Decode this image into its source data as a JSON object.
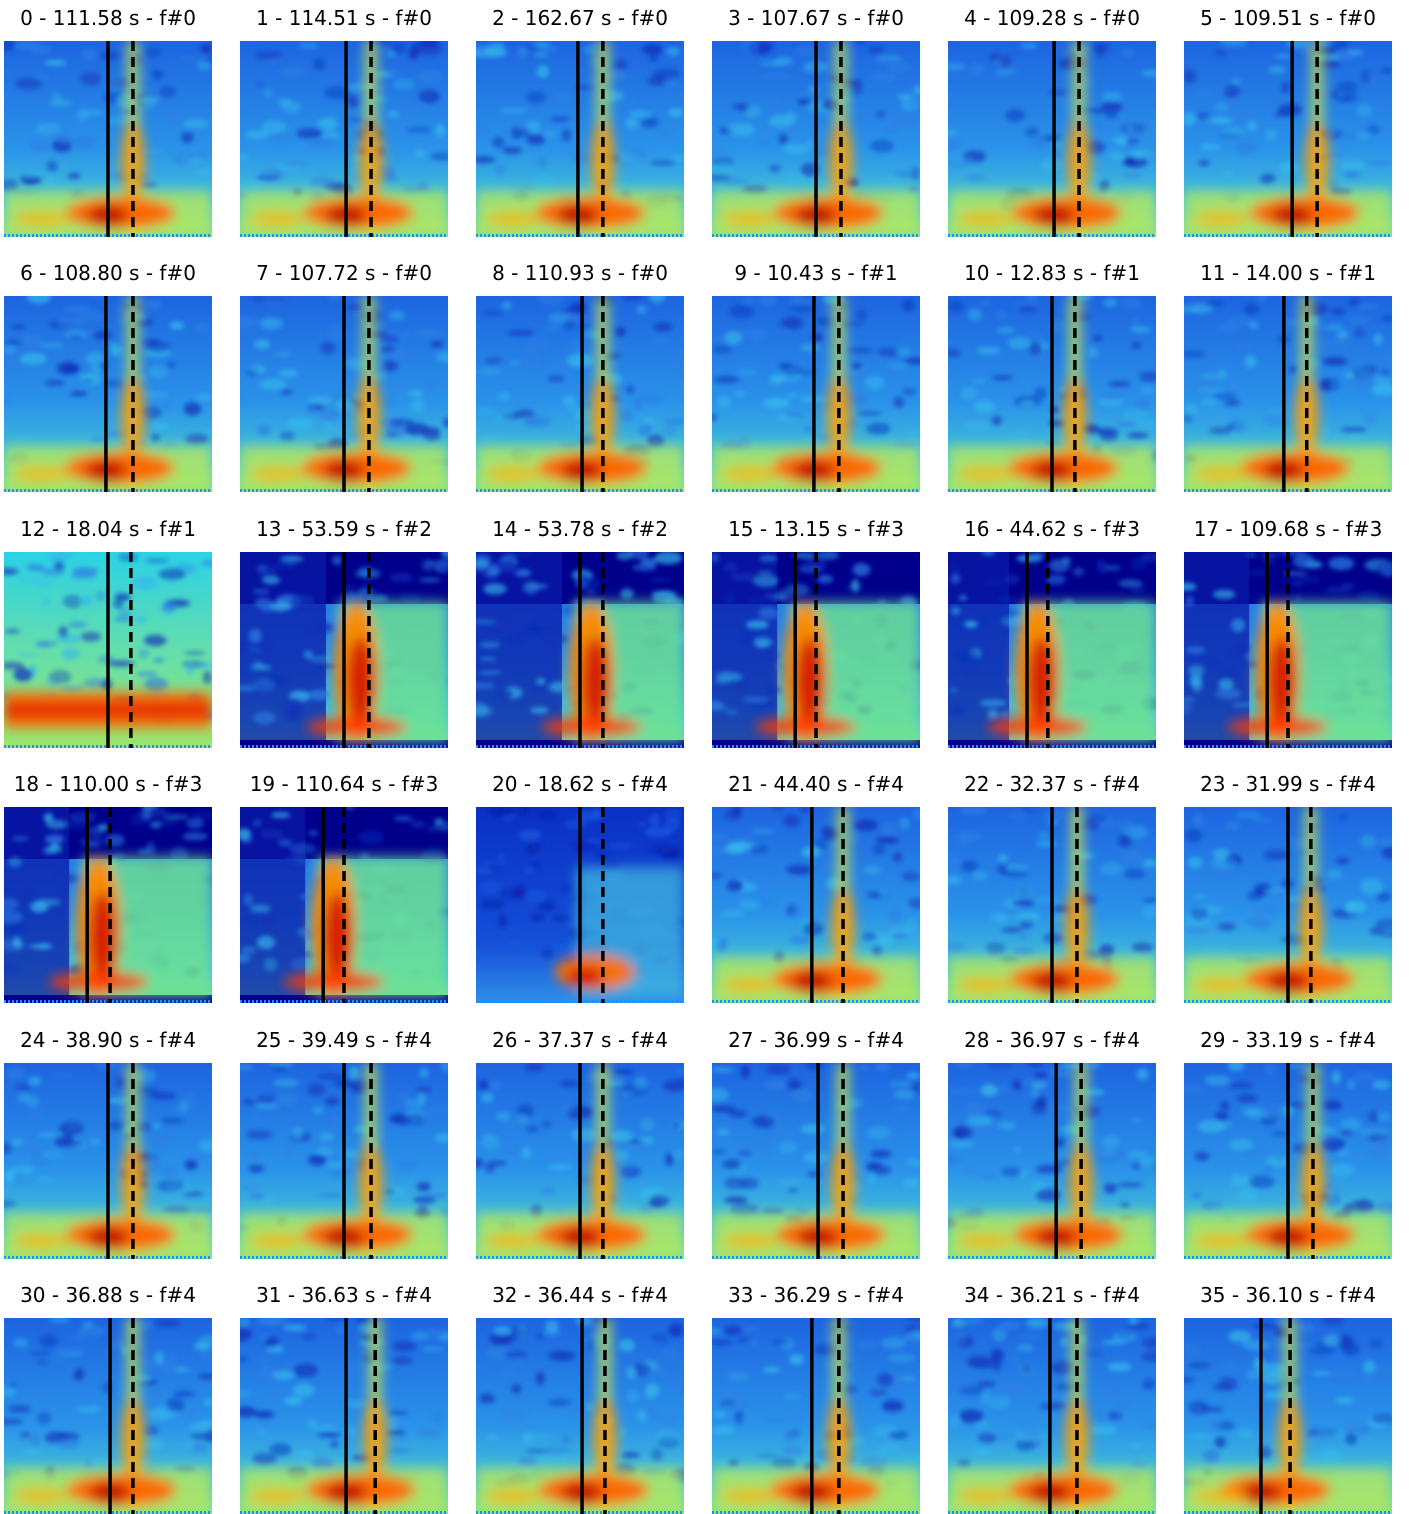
{
  "panels": [
    {
      "title": "0 - 111.58 s - f#0",
      "solid": 0.5,
      "dashed": 0.62,
      "style": "A",
      "seed": 1
    },
    {
      "title": "1 - 114.51 s - f#0",
      "solid": 0.51,
      "dashed": 0.63,
      "style": "A",
      "seed": 2
    },
    {
      "title": "2 - 162.67 s - f#0",
      "solid": 0.49,
      "dashed": 0.61,
      "style": "A",
      "seed": 3
    },
    {
      "title": "3 - 107.67 s - f#0",
      "solid": 0.5,
      "dashed": 0.62,
      "style": "A",
      "seed": 4
    },
    {
      "title": "4 - 109.28 s - f#0",
      "solid": 0.51,
      "dashed": 0.63,
      "style": "A",
      "seed": 5
    },
    {
      "title": "5 - 109.51 s - f#0",
      "solid": 0.52,
      "dashed": 0.64,
      "style": "A",
      "seed": 6
    },
    {
      "title": "6 - 108.80 s - f#0",
      "solid": 0.49,
      "dashed": 0.62,
      "style": "A",
      "seed": 7
    },
    {
      "title": "7 - 107.72 s - f#0",
      "solid": 0.5,
      "dashed": 0.62,
      "style": "A",
      "seed": 8
    },
    {
      "title": "8 - 110.93 s - f#0",
      "solid": 0.51,
      "dashed": 0.61,
      "style": "A",
      "seed": 9
    },
    {
      "title": "9 - 10.43 s - f#1",
      "solid": 0.49,
      "dashed": 0.61,
      "style": "A",
      "seed": 10
    },
    {
      "title": "10 - 12.83 s - f#1",
      "solid": 0.5,
      "dashed": 0.61,
      "style": "A",
      "seed": 11
    },
    {
      "title": "11 - 14.00 s - f#1",
      "solid": 0.48,
      "dashed": 0.59,
      "style": "A",
      "seed": 12
    },
    {
      "title": "12 - 18.04 s - f#1",
      "solid": 0.5,
      "dashed": 0.61,
      "style": "C",
      "seed": 13
    },
    {
      "title": "13 - 53.59 s - f#2",
      "solid": 0.5,
      "dashed": 0.62,
      "style": "B",
      "seed": 14
    },
    {
      "title": "14 - 53.78 s - f#2",
      "solid": 0.5,
      "dashed": 0.61,
      "style": "B",
      "seed": 15
    },
    {
      "title": "15 - 13.15 s - f#3",
      "solid": 0.4,
      "dashed": 0.5,
      "style": "B",
      "seed": 16
    },
    {
      "title": "16 - 44.62 s - f#3",
      "solid": 0.38,
      "dashed": 0.48,
      "style": "B",
      "seed": 17
    },
    {
      "title": "17 - 109.68 s - f#3",
      "solid": 0.4,
      "dashed": 0.5,
      "style": "B",
      "seed": 18
    },
    {
      "title": "18 - 110.00 s - f#3",
      "solid": 0.4,
      "dashed": 0.51,
      "style": "B",
      "seed": 19
    },
    {
      "title": "19 - 110.64 s - f#3",
      "solid": 0.4,
      "dashed": 0.5,
      "style": "B",
      "seed": 20
    },
    {
      "title": "20 - 18.62 s - f#4",
      "solid": 0.5,
      "dashed": 0.61,
      "style": "D",
      "seed": 21
    },
    {
      "title": "21 - 44.40 s - f#4",
      "solid": 0.48,
      "dashed": 0.63,
      "style": "A",
      "seed": 22
    },
    {
      "title": "22 - 32.37 s - f#4",
      "solid": 0.5,
      "dashed": 0.62,
      "style": "A",
      "seed": 23
    },
    {
      "title": "23 - 31.99 s - f#4",
      "solid": 0.5,
      "dashed": 0.61,
      "style": "A",
      "seed": 24
    },
    {
      "title": "24 - 38.90 s - f#4",
      "solid": 0.5,
      "dashed": 0.62,
      "style": "A",
      "seed": 25
    },
    {
      "title": "25 - 39.49 s - f#4",
      "solid": 0.5,
      "dashed": 0.63,
      "style": "A",
      "seed": 26
    },
    {
      "title": "26 - 37.37 s - f#4",
      "solid": 0.5,
      "dashed": 0.61,
      "style": "A",
      "seed": 27
    },
    {
      "title": "27 - 36.99 s - f#4",
      "solid": 0.51,
      "dashed": 0.63,
      "style": "A",
      "seed": 28
    },
    {
      "title": "28 - 36.97 s - f#4",
      "solid": 0.52,
      "dashed": 0.64,
      "style": "A",
      "seed": 29
    },
    {
      "title": "29 - 33.19 s - f#4",
      "solid": 0.5,
      "dashed": 0.62,
      "style": "A",
      "seed": 30
    },
    {
      "title": "30 - 36.88 s - f#4",
      "solid": 0.51,
      "dashed": 0.62,
      "style": "A",
      "seed": 31
    },
    {
      "title": "31 - 36.63 s - f#4",
      "solid": 0.51,
      "dashed": 0.65,
      "style": "A",
      "seed": 32
    },
    {
      "title": "32 - 36.44 s - f#4",
      "solid": 0.51,
      "dashed": 0.62,
      "style": "A",
      "seed": 33
    },
    {
      "title": "33 - 36.29 s - f#4",
      "solid": 0.48,
      "dashed": 0.61,
      "style": "A",
      "seed": 34
    },
    {
      "title": "34 - 36.21 s - f#4",
      "solid": 0.49,
      "dashed": 0.62,
      "style": "A",
      "seed": 35
    },
    {
      "title": "35 - 36.10 s - f#4",
      "solid": 0.37,
      "dashed": 0.51,
      "style": "A",
      "seed": 36
    }
  ]
}
